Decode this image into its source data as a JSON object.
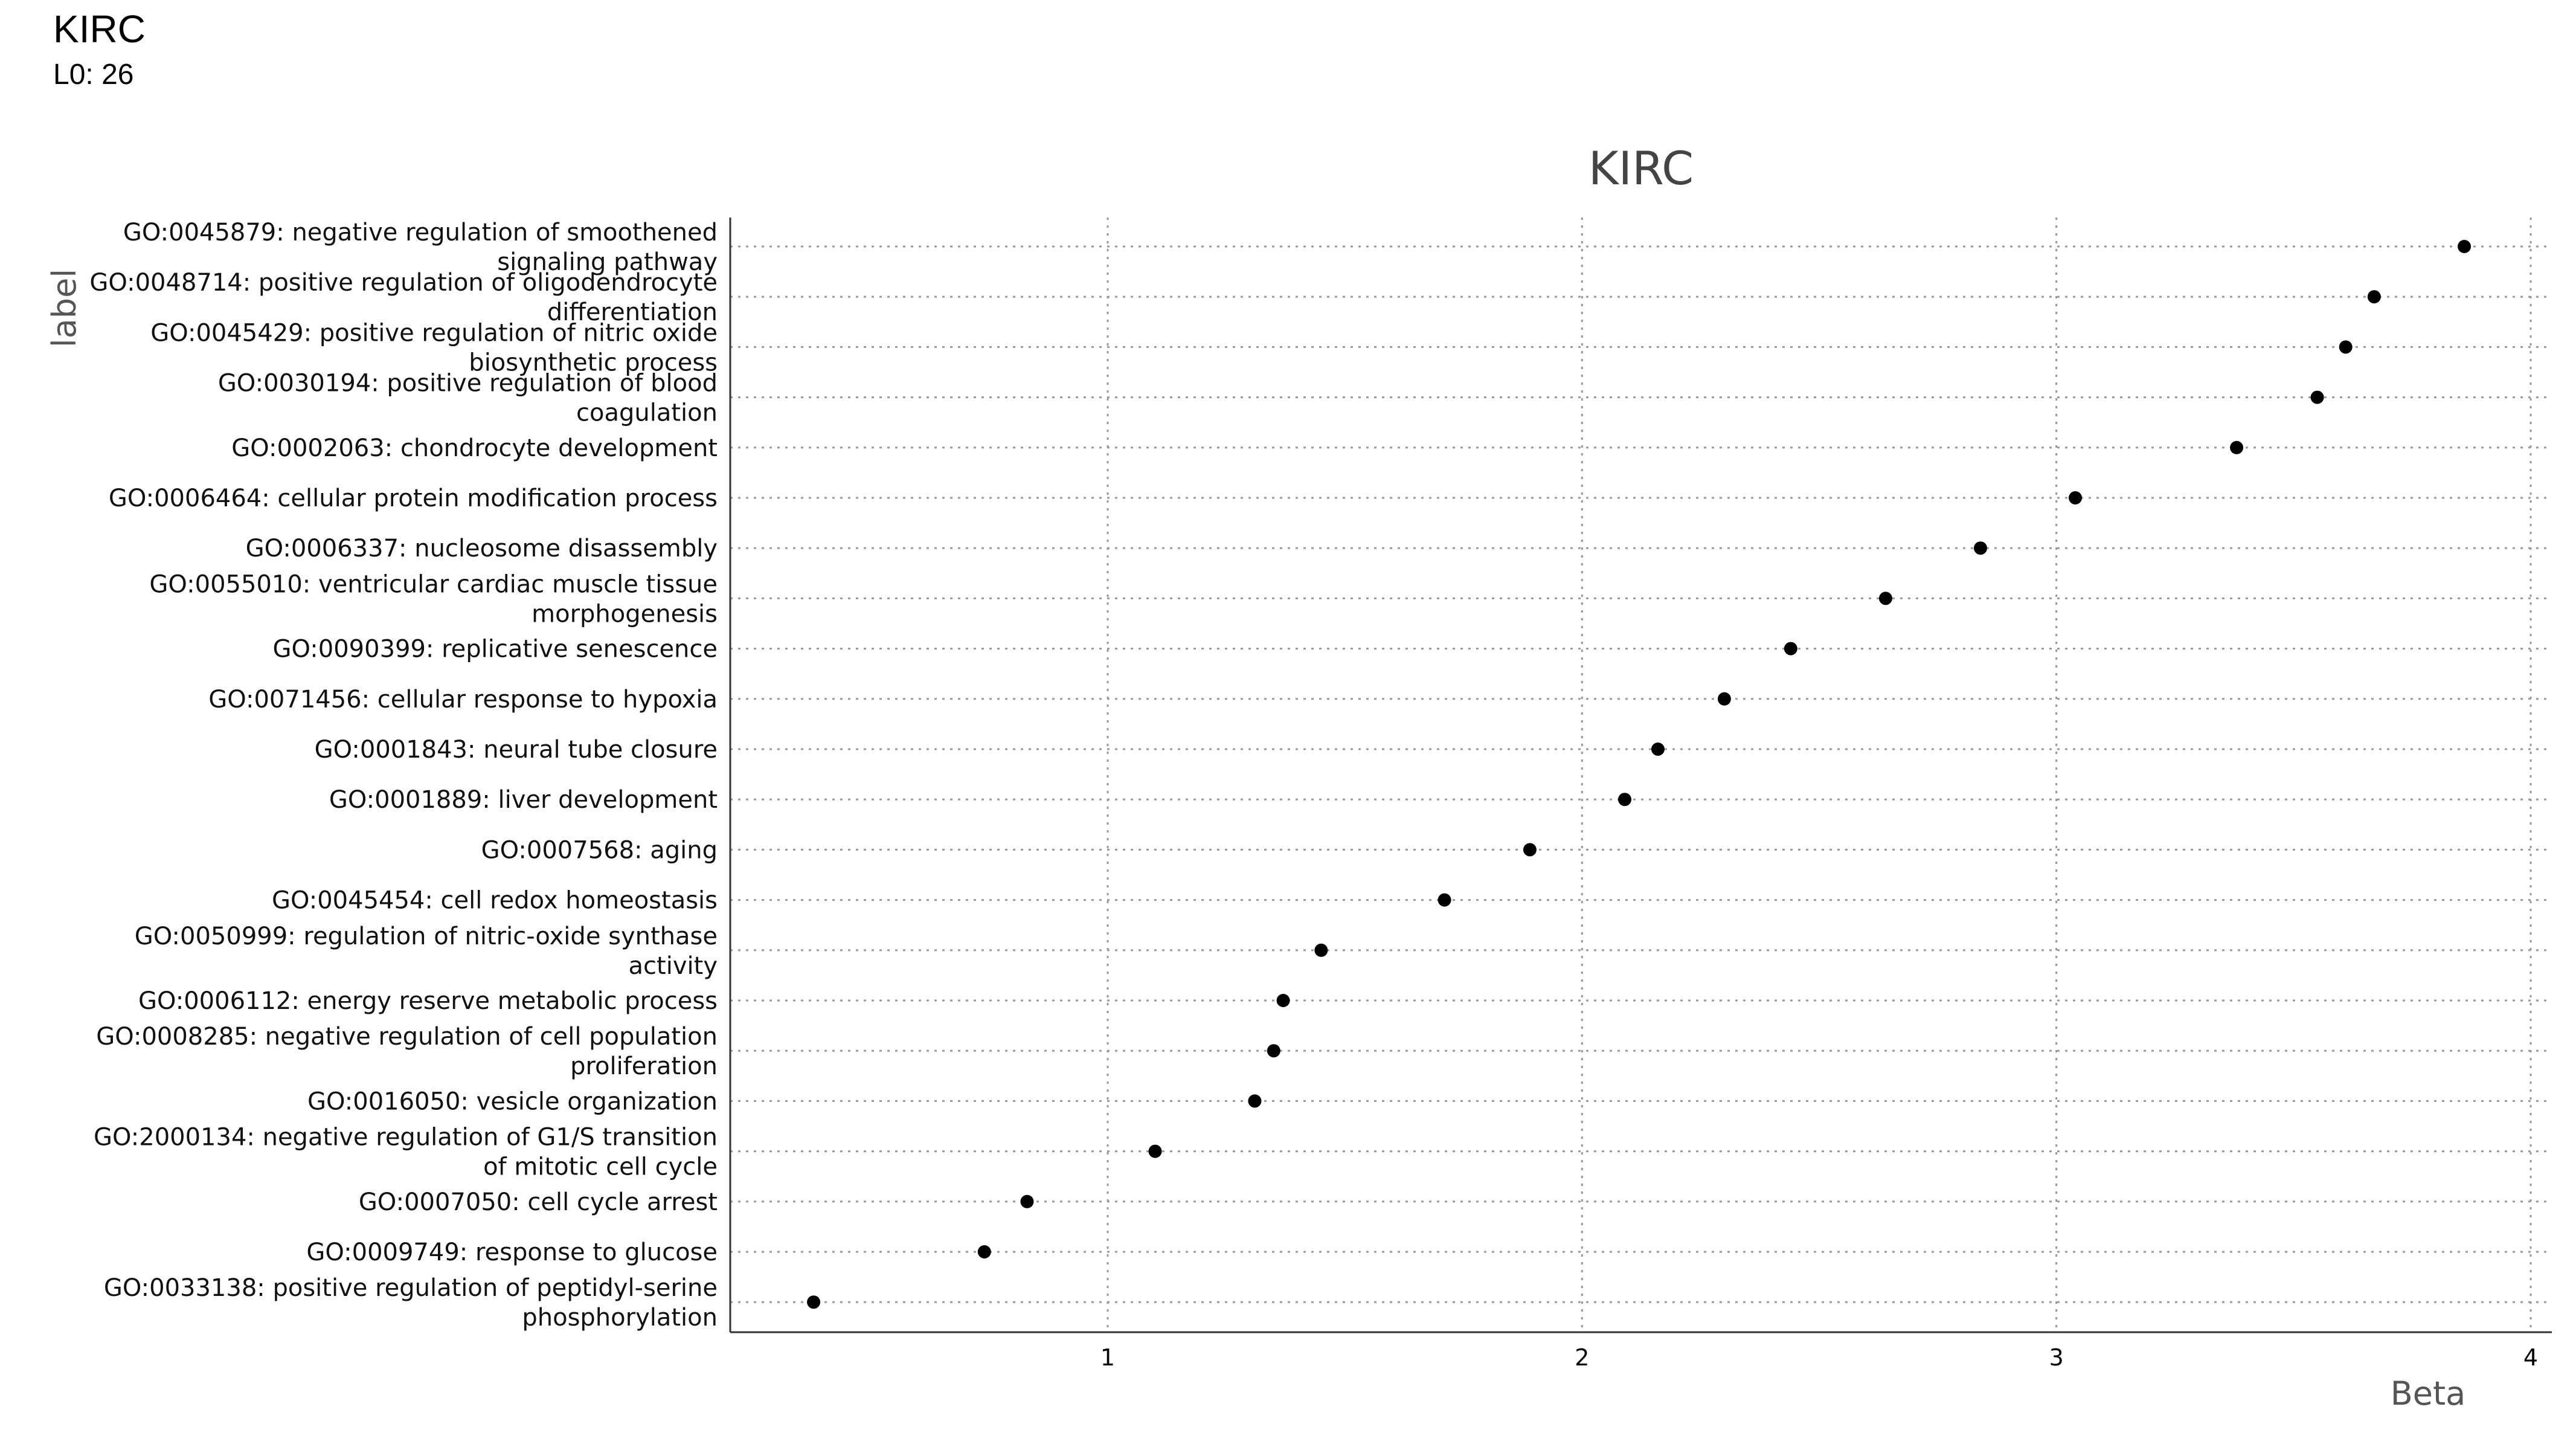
{
  "header": {
    "title": "KIRC",
    "subtitle": "L0: 26"
  },
  "chart_data": {
    "type": "scatter",
    "title": "KIRC",
    "xlabel": "Beta",
    "ylabel": "label",
    "xlim": [
      0.2,
      4.05
    ],
    "xticks": [
      1,
      2,
      3,
      4
    ],
    "grid": true,
    "categories": [
      "GO:0045879: negative regulation of smoothened signaling pathway",
      "GO:0048714: positive regulation of oligodendrocyte differentiation",
      "GO:0045429: positive regulation of nitric oxide biosynthetic process",
      "GO:0030194: positive regulation of blood coagulation",
      "GO:0002063: chondrocyte development",
      "GO:0006464: cellular protein modification process",
      "GO:0006337: nucleosome disassembly",
      "GO:0055010: ventricular cardiac muscle tissue morphogenesis",
      "GO:0090399: replicative senescence",
      "GO:0071456: cellular response to hypoxia",
      "GO:0001843: neural tube closure",
      "GO:0001889: liver development",
      "GO:0007568: aging",
      "GO:0045454: cell redox homeostasis",
      "GO:0050999: regulation of nitric-oxide synthase activity",
      "GO:0006112: energy reserve metabolic process",
      "GO:0008285: negative regulation of cell population proliferation",
      "GO:0016050: vesicle organization",
      "GO:2000134: negative regulation of G1/S transition of mitotic cell cycle",
      "GO:0007050: cell cycle arrest",
      "GO:0009749: response to glucose",
      "GO:0033138: positive regulation of peptidyl-serine phosphorylation"
    ],
    "label_lines": [
      [
        "GO:0045879: negative regulation of smoothened",
        "signaling pathway"
      ],
      [
        "GO:0048714: positive regulation of oligodendrocyte",
        "differentiation"
      ],
      [
        "GO:0045429: positive regulation of nitric oxide",
        "biosynthetic process"
      ],
      [
        "GO:0030194: positive regulation of blood",
        "coagulation"
      ],
      [
        "GO:0002063: chondrocyte development"
      ],
      [
        "GO:0006464: cellular protein modification process"
      ],
      [
        "GO:0006337: nucleosome disassembly"
      ],
      [
        "GO:0055010: ventricular cardiac muscle tissue",
        "morphogenesis"
      ],
      [
        "GO:0090399: replicative senescence"
      ],
      [
        "GO:0071456: cellular response to hypoxia"
      ],
      [
        "GO:0001843: neural tube closure"
      ],
      [
        "GO:0001889: liver development"
      ],
      [
        "GO:0007568: aging"
      ],
      [
        "GO:0045454: cell redox homeostasis"
      ],
      [
        "GO:0050999: regulation of nitric-oxide synthase",
        "activity"
      ],
      [
        "GO:0006112: energy reserve metabolic process"
      ],
      [
        "GO:0008285: negative regulation of cell population",
        "proliferation"
      ],
      [
        "GO:0016050: vesicle organization"
      ],
      [
        "GO:2000134: negative regulation of G1/S transition",
        "of mitotic cell cycle"
      ],
      [
        "GO:0007050: cell cycle arrest"
      ],
      [
        "GO:0009749: response to glucose"
      ],
      [
        "GO:0033138: positive regulation of peptidyl-serine",
        "phosphorylation"
      ]
    ],
    "values": [
      3.86,
      3.67,
      3.61,
      3.55,
      3.38,
      3.04,
      2.84,
      2.64,
      2.44,
      2.3,
      2.16,
      2.09,
      1.89,
      1.71,
      1.45,
      1.37,
      1.35,
      1.31,
      1.1,
      0.83,
      0.74,
      0.38
    ],
    "point_color": "#000000"
  }
}
